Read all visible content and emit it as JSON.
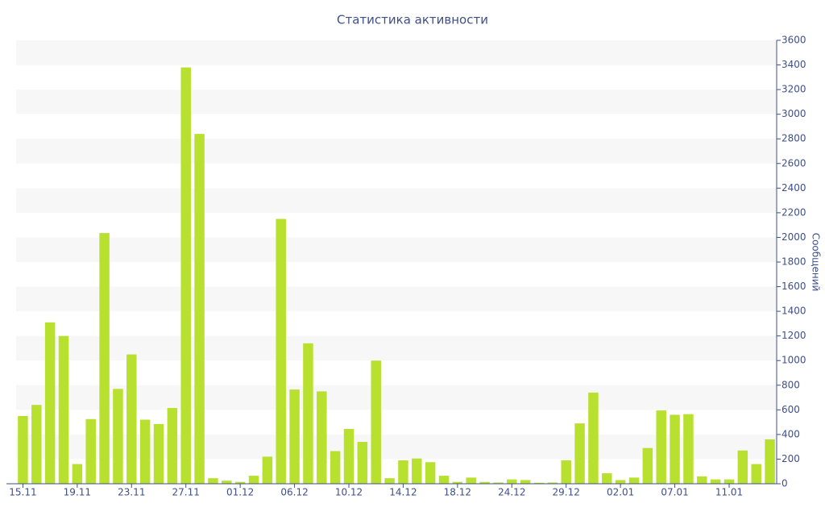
{
  "chart_data": {
    "type": "bar",
    "title": "Статистика активности",
    "y_label": "Сообщений",
    "categories": [
      "15.11",
      null,
      null,
      null,
      "19.11",
      null,
      null,
      null,
      "23.11",
      null,
      null,
      null,
      "27.11",
      null,
      null,
      null,
      "01.12",
      null,
      null,
      null,
      "06.12",
      null,
      null,
      null,
      "10.12",
      null,
      null,
      null,
      "14.12",
      null,
      null,
      null,
      "18.12",
      null,
      null,
      null,
      "24.12",
      null,
      null,
      null,
      "29.12",
      null,
      null,
      null,
      "02.01",
      null,
      null,
      null,
      "07.01",
      null,
      null,
      null,
      "11.01",
      null,
      null,
      null
    ],
    "values": [
      550,
      640,
      1310,
      1200,
      160,
      525,
      2035,
      770,
      1050,
      520,
      485,
      615,
      3380,
      2840,
      45,
      25,
      15,
      65,
      220,
      2150,
      765,
      1140,
      750,
      265,
      445,
      340,
      1000,
      45,
      190,
      205,
      175,
      65,
      15,
      50,
      15,
      10,
      35,
      30,
      8,
      10,
      190,
      490,
      740,
      85,
      30,
      50,
      290,
      595,
      560,
      565,
      60,
      35,
      35,
      270,
      160,
      360
    ],
    "color": "#b8e02e",
    "ylim": [
      0,
      3600
    ],
    "yticks": [
      0,
      200,
      400,
      600,
      800,
      1000,
      1200,
      1400,
      1600,
      1800,
      2000,
      2200,
      2400,
      2600,
      2800,
      3000,
      3200,
      3400,
      3600
    ],
    "grid": true,
    "band_color": "#f7f7f7",
    "y_axis_side": "right"
  }
}
